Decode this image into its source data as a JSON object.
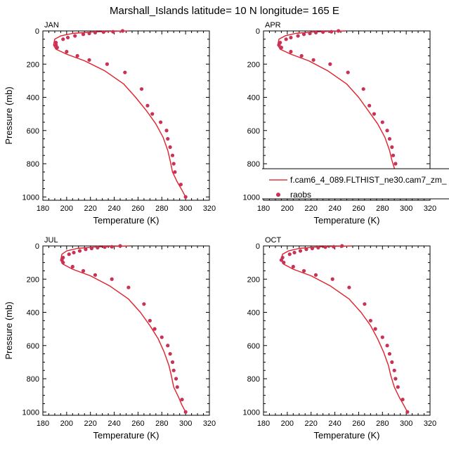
{
  "title": "Marshall_Islands  latitude= 10 N longitude= 165 E",
  "legend": {
    "model_label": "f.cam6_4_089.FLTHIST_ne30.cam7_zm_",
    "obs_label": "raobs",
    "model_color": "#e0202a",
    "obs_color": "#c83257"
  },
  "chart_data": [
    {
      "type": "line",
      "panel": "JAN",
      "xlabel": "Temperature (K)",
      "ylabel": "Pressure (mb)",
      "xlim": [
        180,
        320
      ],
      "ylim": [
        1020,
        0
      ],
      "xticks": [
        180,
        200,
        220,
        240,
        260,
        280,
        300,
        320
      ],
      "yticks": [
        0,
        200,
        400,
        600,
        800,
        1000
      ],
      "series": [
        {
          "name": "f.cam6_4_089.FLTHIST_ne30.cam7_zm_",
          "kind": "line",
          "x": [
            252,
            235,
            220,
            205,
            195,
            190,
            189,
            191,
            200,
            215,
            232,
            248,
            258,
            267,
            275,
            281,
            285,
            287,
            289,
            293,
            297,
            300
          ],
          "y": [
            0,
            3,
            7,
            15,
            30,
            50,
            85,
            110,
            140,
            180,
            240,
            320,
            400,
            480,
            560,
            640,
            720,
            780,
            850,
            910,
            960,
            1000
          ]
        },
        {
          "name": "raobs",
          "kind": "scatter",
          "x": [
            247,
            239,
            231,
            224,
            219,
            214,
            207,
            201,
            197,
            191,
            191,
            192,
            200,
            209,
            219,
            234,
            249,
            263,
            268,
            272,
            279,
            284,
            285,
            287,
            289,
            290,
            291,
            296,
            300
          ],
          "y": [
            0,
            5,
            7,
            10,
            15,
            20,
            30,
            40,
            50,
            70,
            85,
            100,
            125,
            150,
            175,
            200,
            250,
            350,
            450,
            500,
            550,
            600,
            650,
            700,
            750,
            800,
            850,
            925,
            1000
          ]
        }
      ]
    },
    {
      "type": "line",
      "panel": "APR",
      "xlabel": "Temperature (K)",
      "ylabel": "",
      "xlim": [
        180,
        320
      ],
      "ylim": [
        1020,
        0
      ],
      "xticks": [
        180,
        200,
        220,
        240,
        260,
        280,
        300,
        320
      ],
      "yticks": [
        0,
        200,
        400,
        600,
        800,
        1000
      ],
      "series": [
        {
          "name": "f.cam6_4_089.FLTHIST_ne30.cam7_zm_",
          "kind": "line",
          "x": [
            249,
            234,
            220,
            207,
            198,
            193,
            192,
            194,
            203,
            218,
            234,
            250,
            260,
            268,
            276,
            282,
            286,
            288,
            291,
            295,
            298,
            301
          ],
          "y": [
            0,
            3,
            7,
            15,
            30,
            50,
            85,
            110,
            140,
            180,
            240,
            320,
            400,
            480,
            560,
            640,
            720,
            780,
            850,
            910,
            960,
            1000
          ]
        },
        {
          "name": "raobs",
          "kind": "scatter",
          "x": [
            243,
            237,
            230,
            224,
            219,
            214,
            209,
            203,
            199,
            194,
            193,
            195,
            203,
            212,
            222,
            236,
            251,
            264,
            269,
            273,
            280,
            284,
            286,
            288,
            289,
            291,
            292,
            296,
            300
          ],
          "y": [
            0,
            5,
            7,
            10,
            15,
            20,
            30,
            40,
            50,
            70,
            85,
            100,
            125,
            150,
            175,
            200,
            250,
            350,
            450,
            500,
            550,
            600,
            650,
            700,
            750,
            800,
            850,
            925,
            1000
          ]
        }
      ]
    },
    {
      "type": "line",
      "panel": "JUL",
      "xlabel": "Temperature (K)",
      "ylabel": "Pressure (mb)",
      "xlim": [
        180,
        320
      ],
      "ylim": [
        1020,
        0
      ],
      "xticks": [
        180,
        200,
        220,
        240,
        260,
        280,
        300,
        320
      ],
      "yticks": [
        0,
        200,
        400,
        600,
        800,
        1000
      ],
      "series": [
        {
          "name": "f.cam6_4_089.FLTHIST_ne30.cam7_zm_",
          "kind": "line",
          "x": [
            253,
            237,
            222,
            209,
            200,
            196,
            195,
            197,
            205,
            220,
            236,
            252,
            262,
            270,
            277,
            282,
            286,
            288,
            290,
            294,
            297,
            300
          ],
          "y": [
            0,
            3,
            7,
            15,
            30,
            50,
            85,
            110,
            140,
            180,
            240,
            320,
            400,
            480,
            560,
            640,
            720,
            780,
            850,
            910,
            960,
            1000
          ]
        },
        {
          "name": "raobs",
          "kind": "scatter",
          "x": [
            245,
            238,
            232,
            226,
            221,
            216,
            211,
            206,
            202,
            197,
            196,
            197,
            205,
            214,
            224,
            238,
            252,
            265,
            270,
            274,
            280,
            285,
            287,
            289,
            290,
            292,
            293,
            297,
            300
          ],
          "y": [
            0,
            5,
            7,
            10,
            15,
            20,
            30,
            40,
            50,
            70,
            85,
            100,
            125,
            150,
            175,
            200,
            250,
            350,
            450,
            500,
            550,
            600,
            650,
            700,
            750,
            800,
            850,
            925,
            1000
          ]
        }
      ]
    },
    {
      "type": "line",
      "panel": "OCT",
      "xlabel": "Temperature (K)",
      "ylabel": "",
      "xlim": [
        180,
        320
      ],
      "ylim": [
        1020,
        0
      ],
      "xticks": [
        180,
        200,
        220,
        240,
        260,
        280,
        300,
        320
      ],
      "yticks": [
        0,
        200,
        400,
        600,
        800,
        1000
      ],
      "series": [
        {
          "name": "f.cam6_4_089.FLTHIST_ne30.cam7_zm_",
          "kind": "line",
          "x": [
            254,
            238,
            223,
            210,
            201,
            196,
            195,
            197,
            205,
            220,
            236,
            252,
            262,
            270,
            276,
            281,
            285,
            287,
            290,
            294,
            298,
            301
          ],
          "y": [
            0,
            3,
            7,
            15,
            30,
            50,
            85,
            110,
            140,
            180,
            240,
            320,
            400,
            480,
            560,
            640,
            720,
            780,
            850,
            910,
            960,
            1000
          ]
        },
        {
          "name": "raobs",
          "kind": "scatter",
          "x": [
            246,
            239,
            232,
            226,
            221,
            216,
            211,
            206,
            202,
            196,
            195,
            197,
            205,
            214,
            224,
            238,
            252,
            265,
            270,
            274,
            280,
            284,
            286,
            288,
            290,
            291,
            293,
            297,
            301
          ],
          "y": [
            0,
            5,
            7,
            10,
            15,
            20,
            30,
            40,
            50,
            70,
            85,
            100,
            125,
            150,
            175,
            200,
            250,
            350,
            450,
            500,
            550,
            600,
            650,
            700,
            750,
            800,
            850,
            925,
            1000
          ]
        }
      ]
    }
  ]
}
